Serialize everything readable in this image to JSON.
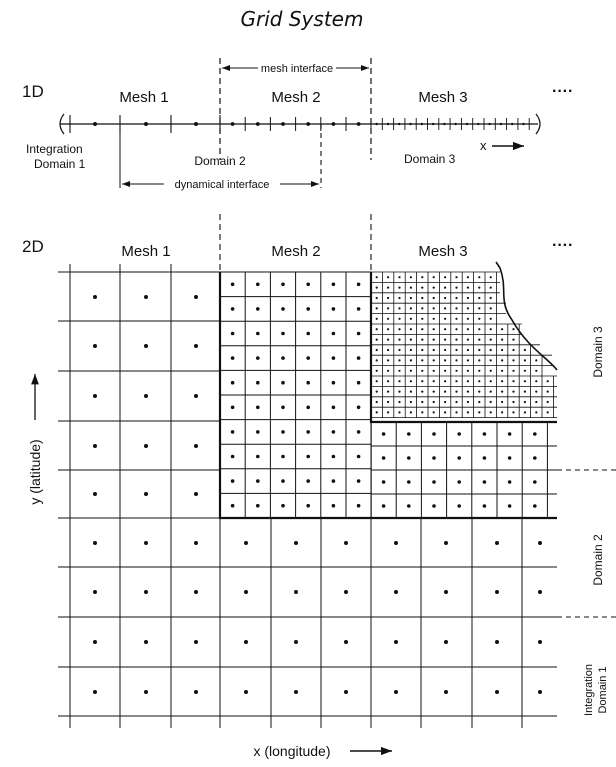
{
  "title": "Grid System",
  "one_d": {
    "row_label": "1D",
    "meshes": [
      "Mesh 1",
      "Mesh 2",
      "Mesh 3"
    ],
    "ellipsis": "····",
    "mesh_interface": "mesh interface",
    "dynamical_interface": "dynamical interface",
    "domain1_line1": "Integration",
    "domain1_line2": "Domain 1",
    "domain2": "Domain 2",
    "domain3": "Domain 3",
    "x_arrow_label": "x"
  },
  "two_d": {
    "row_label": "2D",
    "meshes": [
      "Mesh 1",
      "Mesh 2",
      "Mesh 3"
    ],
    "ellipsis": "····",
    "y_axis_label": "y  (latitude)",
    "x_axis_label": "x  (longitude)",
    "domain3": "Domain 3",
    "domain2": "Domain 2",
    "domain1_line1": "Integration",
    "domain1_line2": "Domain 1"
  }
}
